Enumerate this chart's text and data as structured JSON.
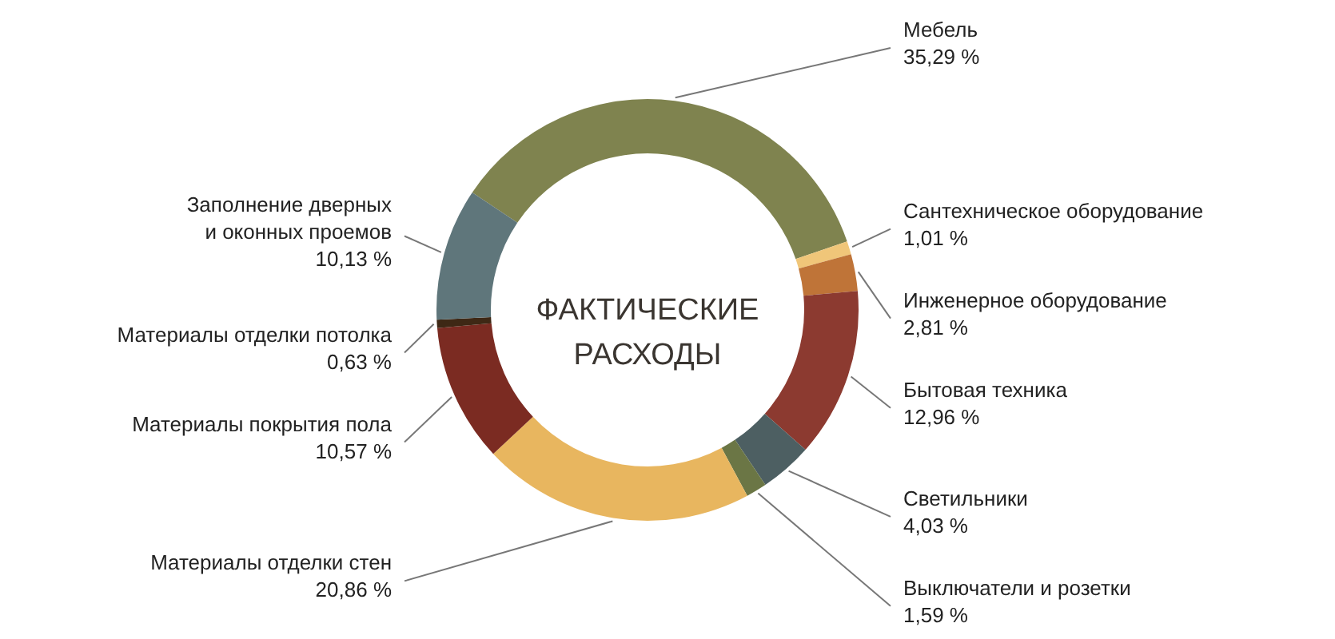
{
  "chart_data": {
    "type": "donut",
    "title": "ФАКТИЧЕСКИЕ РАСХОДЫ",
    "categories": [
      "Мебель",
      "Сантехническое оборудование",
      "Инженерное оборудование",
      "Бытовая техника",
      "Светильники",
      "Выключатели и розетки",
      "Материалы отделки стен",
      "Материалы покрытия пола",
      "Материалы отделки потолка",
      "Заполнение дверных и оконных проемов"
    ],
    "values": [
      35.29,
      1.01,
      2.81,
      12.96,
      4.03,
      1.59,
      20.86,
      10.57,
      0.63,
      10.13
    ],
    "value_labels": [
      "35,29 %",
      "1,01 %",
      "2,81 %",
      "12,96 %",
      "4,03 %",
      "1,59 %",
      "20,86 %",
      "10,57 %",
      "0,63 %",
      "10,13 %"
    ],
    "colors": [
      "#7f834f",
      "#f0c679",
      "#bf7438",
      "#8c3a30",
      "#4d5f62",
      "#6b7645",
      "#e8b65f",
      "#7b2b22",
      "#3e2815",
      "#5f767b"
    ]
  }
}
